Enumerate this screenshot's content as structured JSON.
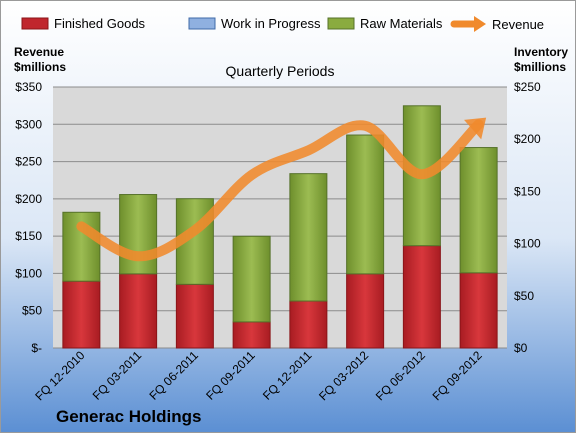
{
  "chart_data": {
    "type": "bar",
    "subtitle": "Quarterly Periods",
    "company": "Generac Holdings",
    "y_left_label": [
      "Revenue",
      "$millions"
    ],
    "y_right_label": [
      "Inventory",
      "$millions"
    ],
    "y_left_ticks": [
      "$-",
      "$50",
      "$100",
      "$150",
      "$200",
      "$250",
      "$300",
      "$350"
    ],
    "y_right_ticks": [
      "$0",
      "$50",
      "$100",
      "$150",
      "$200",
      "$250"
    ],
    "ylim_left": [
      0,
      350
    ],
    "ylim_right": [
      0,
      250
    ],
    "categories": [
      "FQ 12-2010",
      "FQ 03-2011",
      "FQ 06-2011",
      "FQ 09-2011",
      "FQ 12-2011",
      "FQ 03-2012",
      "FQ 06-2012",
      "FQ 09-2012"
    ],
    "series": [
      {
        "name": "Finished Goods",
        "type": "stacked-bar",
        "axis": "right",
        "color": "#c0262d",
        "values": [
          64,
          71,
          61,
          25,
          45,
          71,
          98,
          72
        ]
      },
      {
        "name": "Work in Progress",
        "type": "stacked-bar",
        "axis": "right",
        "color": "#7ea3d6",
        "values": [
          0,
          0,
          0,
          0,
          0,
          0,
          0,
          0
        ]
      },
      {
        "name": "Raw Materials",
        "type": "stacked-bar",
        "axis": "right",
        "color": "#8aab3f",
        "values": [
          66,
          76,
          82,
          82,
          122,
          133,
          134,
          120
        ]
      },
      {
        "name": "Revenue",
        "type": "line",
        "axis": "left",
        "color": "#f08a2c",
        "values": [
          163,
          123,
          158,
          232,
          265,
          298,
          233,
          300
        ]
      }
    ],
    "legend_position": "top",
    "grid": true
  }
}
